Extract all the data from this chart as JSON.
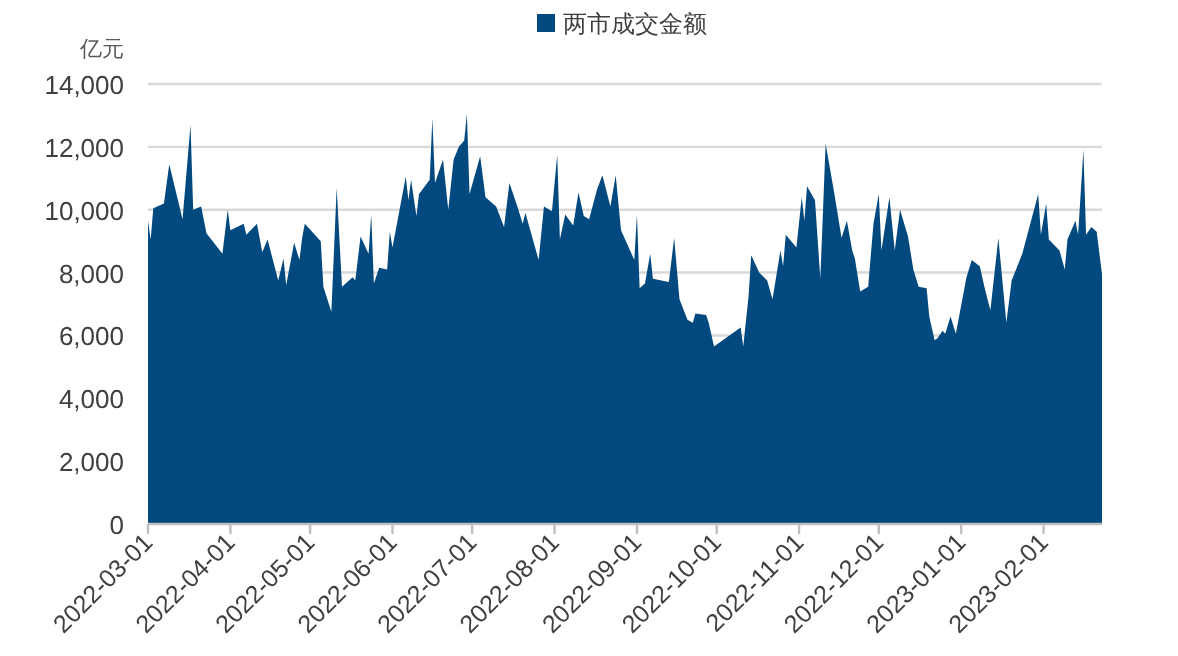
{
  "chart_data": {
    "type": "area",
    "ylabel": "亿元",
    "legend": "top",
    "grid": "y",
    "xlim": [
      "2022-03-01",
      "2023-02-23"
    ],
    "xticks": [
      "2022-03-01",
      "2022-04-01",
      "2022-05-01",
      "2022-06-01",
      "2022-07-01",
      "2022-08-01",
      "2022-09-01",
      "2022-10-01",
      "2022-11-01",
      "2022-12-01",
      "2023-01-01",
      "2023-02-01"
    ],
    "ylim": [
      0,
      14000
    ],
    "yticks": [
      0,
      {
        "value": 2000,
        "label": "2,000"
      },
      {
        "value": 4000,
        "label": "4,000"
      },
      {
        "value": 6000,
        "label": "6,000"
      },
      {
        "value": 8000,
        "label": "8,000"
      },
      {
        "value": 10000,
        "label": "10,000"
      },
      {
        "value": 12000,
        "label": "12,000"
      },
      {
        "value": 14000,
        "label": "14,000"
      }
    ],
    "x": [
      "2022-03-01",
      "2022-03-02",
      "2022-03-03",
      "2022-03-07",
      "2022-03-09",
      "2022-03-14",
      "2022-03-17",
      "2022-03-18",
      "2022-03-21",
      "2022-03-23",
      "2022-03-29",
      "2022-03-31",
      "2022-04-01",
      "2022-04-06",
      "2022-04-07",
      "2022-04-11",
      "2022-04-13",
      "2022-04-15",
      "2022-04-19",
      "2022-04-21",
      "2022-04-22",
      "2022-04-25",
      "2022-04-27",
      "2022-04-28",
      "2022-04-29",
      "2022-05-05",
      "2022-05-06",
      "2022-05-09",
      "2022-05-11",
      "2022-05-13",
      "2022-05-17",
      "2022-05-18",
      "2022-05-20",
      "2022-05-23",
      "2022-05-24",
      "2022-05-25",
      "2022-05-27",
      "2022-05-30",
      "2022-05-31",
      "2022-06-01",
      "2022-06-06",
      "2022-06-07",
      "2022-06-08",
      "2022-06-10",
      "2022-06-11",
      "2022-06-15",
      "2022-06-16",
      "2022-06-17",
      "2022-06-20",
      "2022-06-22",
      "2022-06-24",
      "2022-06-26",
      "2022-06-28",
      "2022-06-29",
      "2022-06-30",
      "2022-07-04",
      "2022-07-06",
      "2022-07-10",
      "2022-07-13",
      "2022-07-15",
      "2022-07-18",
      "2022-07-20",
      "2022-07-21",
      "2022-07-26",
      "2022-07-28",
      "2022-07-31",
      "2022-08-02",
      "2022-08-03",
      "2022-08-05",
      "2022-08-08",
      "2022-08-10",
      "2022-08-12",
      "2022-08-14",
      "2022-08-17",
      "2022-08-19",
      "2022-08-22",
      "2022-08-24",
      "2022-08-26",
      "2022-08-31",
      "2022-09-01",
      "2022-09-02",
      "2022-09-04",
      "2022-09-06",
      "2022-09-07",
      "2022-09-13",
      "2022-09-15",
      "2022-09-17",
      "2022-09-20",
      "2022-09-22",
      "2022-09-23",
      "2022-09-27",
      "2022-09-28",
      "2022-09-30",
      "2022-10-10",
      "2022-10-11",
      "2022-10-13",
      "2022-10-14",
      "2022-10-17",
      "2022-10-20",
      "2022-10-22",
      "2022-10-25",
      "2022-10-26",
      "2022-10-27",
      "2022-10-31",
      "2022-11-02",
      "2022-11-03",
      "2022-11-04",
      "2022-11-07",
      "2022-11-09",
      "2022-11-11",
      "2022-11-14",
      "2022-11-17",
      "2022-11-19",
      "2022-11-21",
      "2022-11-22",
      "2022-11-24",
      "2022-11-27",
      "2022-11-29",
      "2022-12-01",
      "2022-12-02",
      "2022-12-05",
      "2022-12-07",
      "2022-12-09",
      "2022-12-12",
      "2022-12-14",
      "2022-12-16",
      "2022-12-19",
      "2022-12-20",
      "2022-12-22",
      "2022-12-23",
      "2022-12-25",
      "2022-12-26",
      "2022-12-28",
      "2022-12-30",
      "2023-01-03",
      "2023-01-05",
      "2023-01-08",
      "2023-01-10",
      "2023-01-12",
      "2023-01-15",
      "2023-01-18",
      "2023-01-20",
      "2023-01-24",
      "2023-01-30",
      "2023-01-31",
      "2023-02-02",
      "2023-02-03",
      "2023-02-07",
      "2023-02-09",
      "2023-02-10",
      "2023-02-13",
      "2023-02-14",
      "2023-02-16",
      "2023-02-17",
      "2023-02-19",
      "2023-02-21",
      "2023-02-23"
    ],
    "series": [
      {
        "name": "两市成交金额",
        "color": "#02497f",
        "values": [
          9650,
          9050,
          10050,
          10200,
          11450,
          9700,
          12700,
          10000,
          10100,
          9250,
          8600,
          10000,
          9350,
          9550,
          9200,
          9550,
          8650,
          9050,
          7750,
          8450,
          7600,
          8950,
          8400,
          9100,
          9550,
          9000,
          7550,
          6750,
          10700,
          7550,
          7850,
          7750,
          9150,
          8600,
          9850,
          7650,
          8150,
          8100,
          9300,
          8800,
          11050,
          10300,
          10950,
          9800,
          10500,
          10950,
          12900,
          10850,
          11600,
          10000,
          11600,
          12000,
          12200,
          13050,
          10500,
          11700,
          10400,
          10100,
          9450,
          10850,
          10100,
          9550,
          9900,
          8400,
          10100,
          9950,
          11750,
          9050,
          9850,
          9500,
          10550,
          9800,
          9700,
          10650,
          11100,
          10100,
          11100,
          9350,
          8400,
          9850,
          7500,
          7650,
          8600,
          7800,
          7700,
          9100,
          7150,
          6500,
          6400,
          6700,
          6650,
          6400,
          5650,
          6250,
          5650,
          7250,
          8550,
          8000,
          7750,
          7150,
          8700,
          8200,
          9200,
          8800,
          10400,
          9650,
          10750,
          10300,
          7800,
          12100,
          10650,
          9100,
          9650,
          8700,
          8450,
          7400,
          7550,
          9550,
          10500,
          8700,
          10400,
          8700,
          10000,
          9150,
          8100,
          7550,
          7500,
          6600,
          5850,
          5900,
          6150,
          6050,
          6600,
          6050,
          7850,
          8400,
          8200,
          7450,
          6800,
          9100,
          6400,
          7750,
          8600,
          10500,
          9200,
          10200,
          9050,
          8700,
          8100,
          9050,
          9650,
          9200,
          11900,
          9200,
          9450,
          9300,
          7950
        ]
      }
    ]
  }
}
